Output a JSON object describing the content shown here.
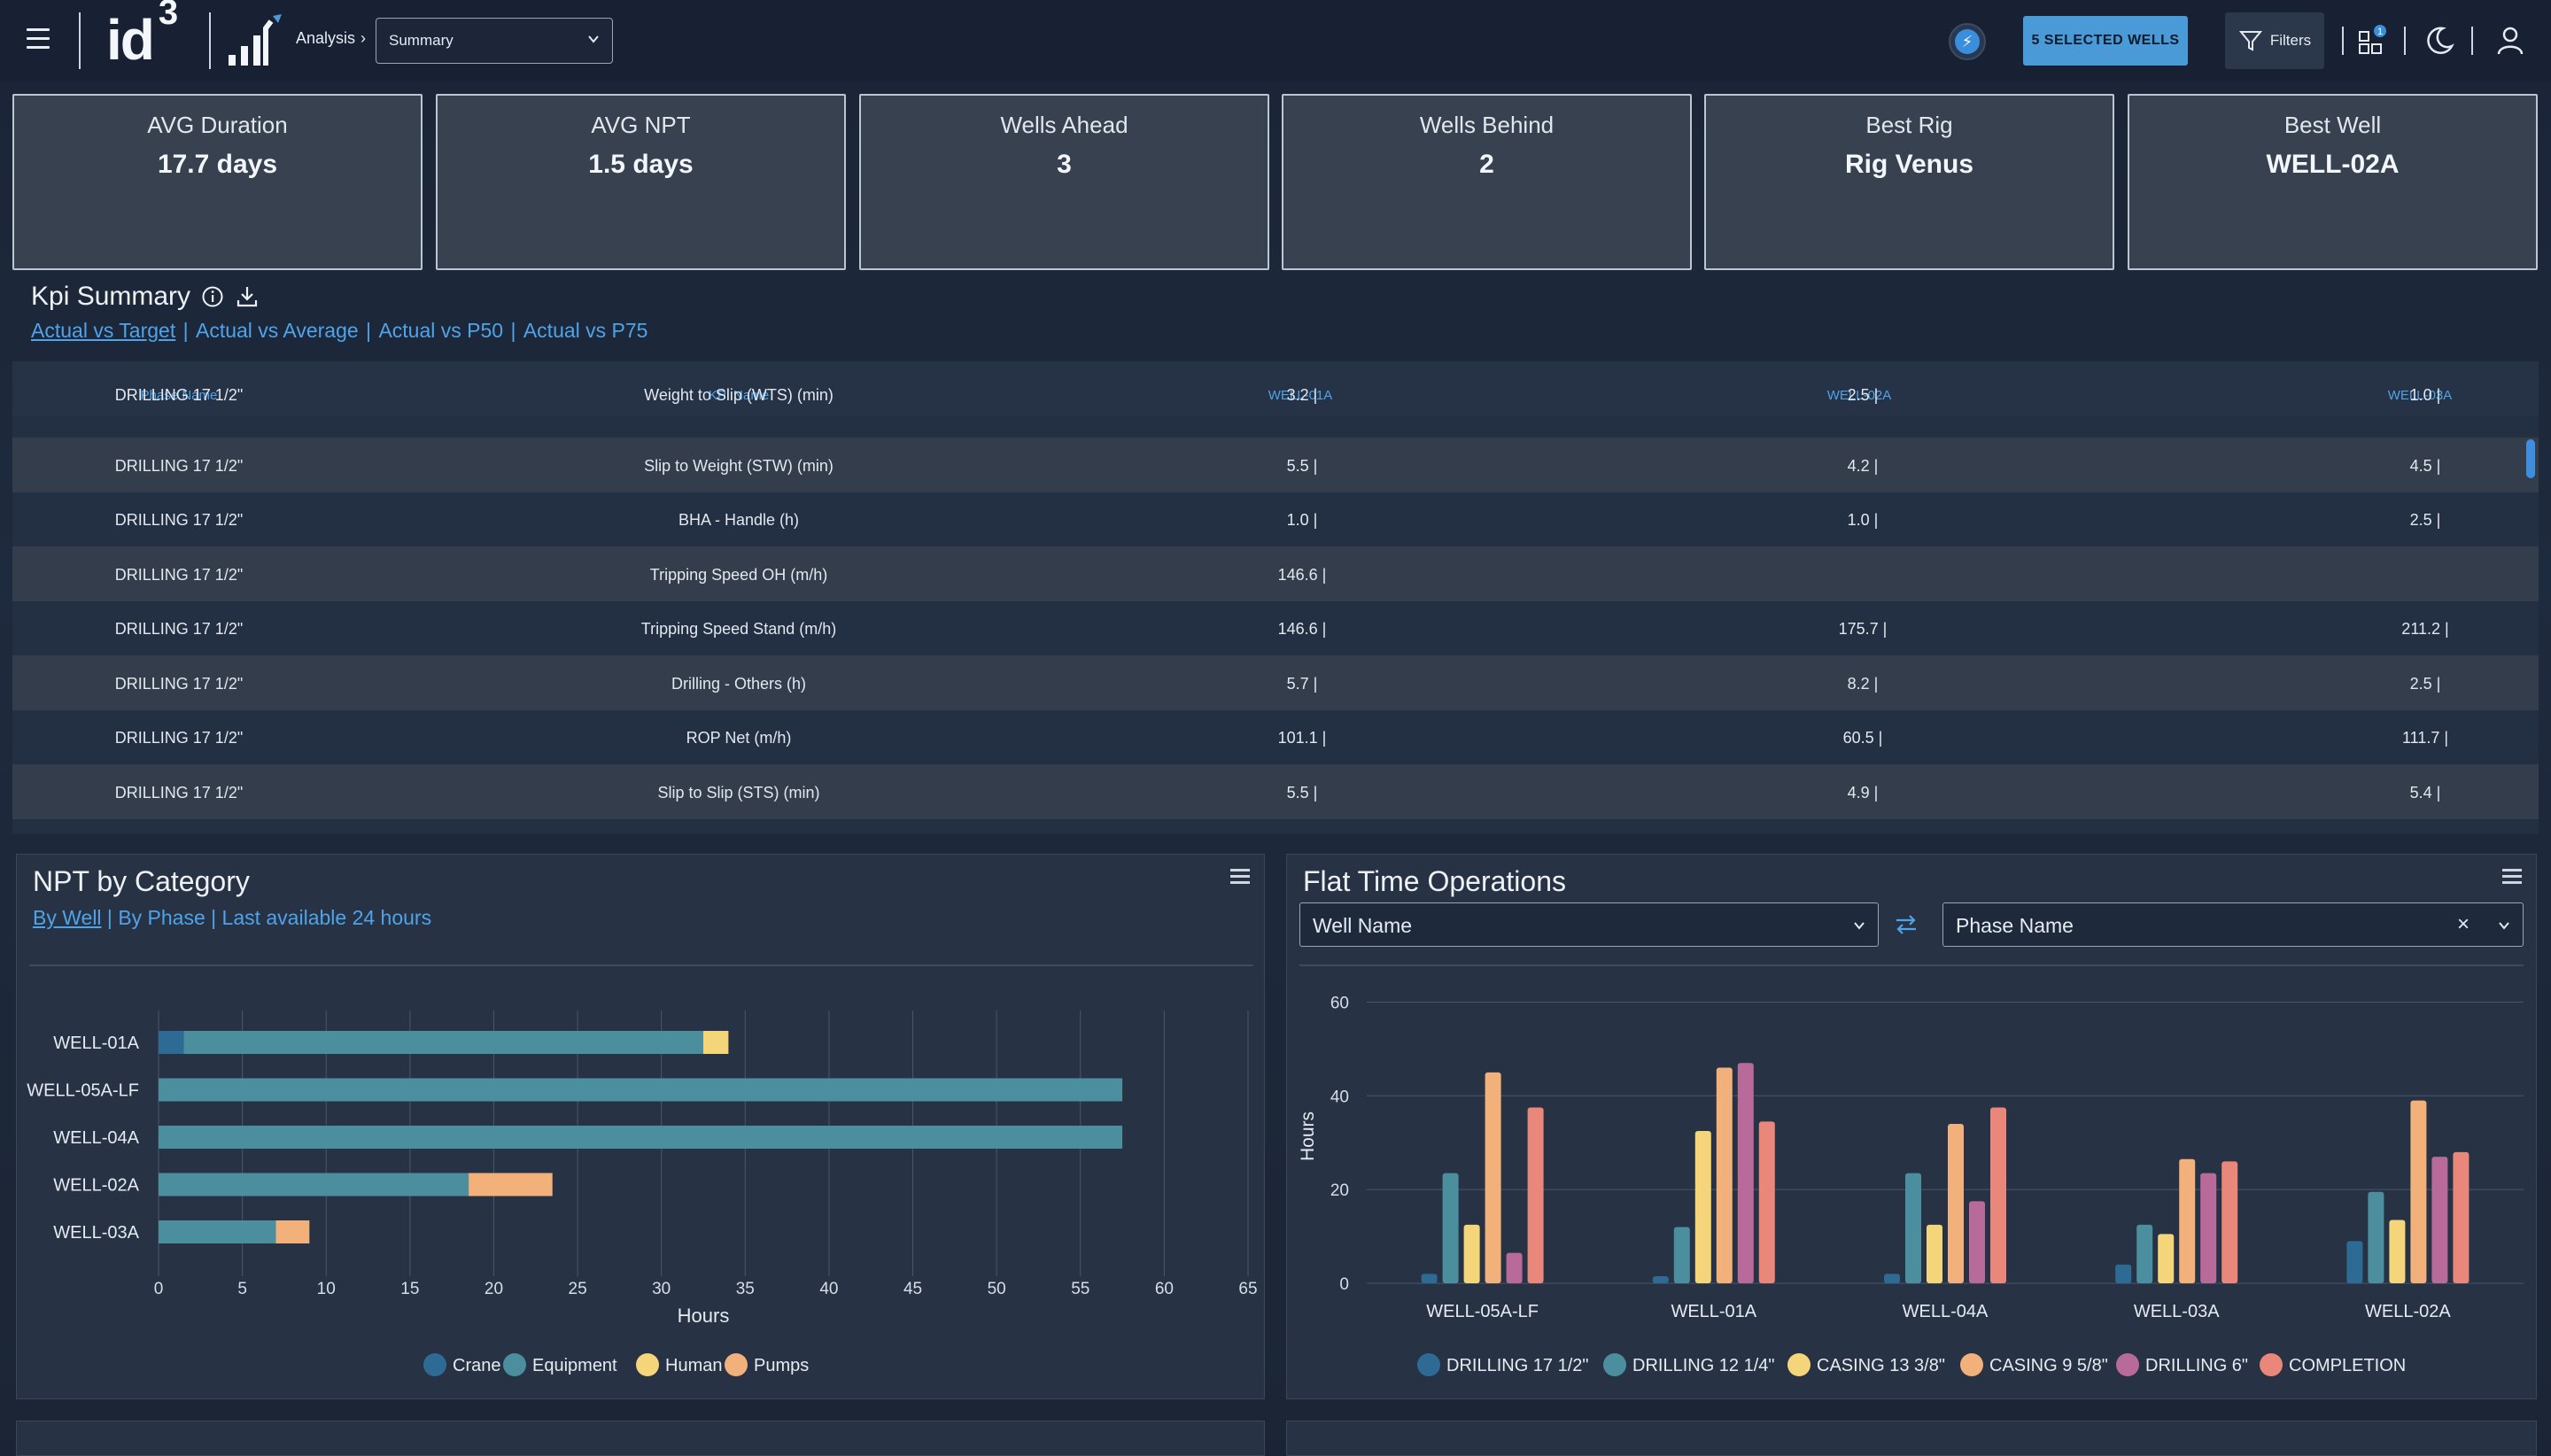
{
  "header": {
    "logo_text": "id",
    "logo_sup": "3",
    "breadcrumb": "Analysis",
    "view_select": "Summary",
    "selected_wells": "5 SELECTED WELLS",
    "filters": "Filters",
    "notification_count": "1"
  },
  "kpi_cards": [
    {
      "label": "AVG Duration",
      "value": "17.7 days"
    },
    {
      "label": "AVG NPT",
      "value": "1.5 days"
    },
    {
      "label": "Wells Ahead",
      "value": "3"
    },
    {
      "label": "Wells Behind",
      "value": "2"
    },
    {
      "label": "Best Rig",
      "value": "Rig Venus"
    },
    {
      "label": "Best Well",
      "value": "WELL-02A"
    }
  ],
  "kpi_summary": {
    "title": "Kpi Summary",
    "tabs": [
      "Actual vs Target",
      "Actual vs Average",
      "Actual vs P50",
      "Actual vs P75"
    ],
    "columns": [
      "Phase Name",
      "KPI Name",
      "WELL-01A",
      "WELL-02A",
      "WELL-03A"
    ],
    "rows": [
      [
        "DRILLING 17 1/2\"",
        "Weight to Slip (WTS) (min)",
        "3.2 |",
        "2.5 |",
        "1.0 |"
      ],
      [
        "DRILLING 17 1/2\"",
        "Slip to Weight (STW) (min)",
        "5.5 |",
        "4.2 |",
        "4.5 |"
      ],
      [
        "DRILLING 17 1/2\"",
        "BHA - Handle (h)",
        "1.0 |",
        "1.0 |",
        "2.5 |"
      ],
      [
        "DRILLING 17 1/2\"",
        "Tripping Speed OH (m/h)",
        "146.6 |",
        "",
        ""
      ],
      [
        "DRILLING 17 1/2\"",
        "Tripping Speed Stand (m/h)",
        "146.6 |",
        "175.7 |",
        "211.2 |"
      ],
      [
        "DRILLING 17 1/2\"",
        "Drilling - Others (h)",
        "5.7 |",
        "8.2 |",
        "2.5 |"
      ],
      [
        "DRILLING 17 1/2\"",
        "ROP Net (m/h)",
        "101.1 |",
        "60.5 |",
        "111.7 |"
      ],
      [
        "DRILLING 17 1/2\"",
        "Slip to Slip (STS) (min)",
        "5.5 |",
        "4.9 |",
        "5.4 |"
      ]
    ]
  },
  "npt_panel": {
    "title": "NPT by Category",
    "links": [
      "By Well",
      "By Phase",
      "Last available 24 hours"
    ]
  },
  "flat_panel": {
    "title": "Flat Time Operations",
    "dropdown_left": "Well Name",
    "dropdown_right": "Phase Name"
  },
  "chart_data": [
    {
      "type": "bar",
      "orientation": "horizontal",
      "stacked": true,
      "categories": [
        "WELL-01A",
        "WELL-05A-LF",
        "WELL-04A",
        "WELL-02A",
        "WELL-03A"
      ],
      "series": [
        {
          "name": "Crane",
          "color": "#2e6b94",
          "values": [
            1.5,
            0,
            0,
            0,
            0
          ]
        },
        {
          "name": "Equipment",
          "color": "#4b8f9f",
          "values": [
            31,
            57.5,
            57.5,
            18.5,
            7
          ]
        },
        {
          "name": "Human",
          "color": "#f5d57a",
          "values": [
            1.5,
            0,
            0,
            0,
            0
          ]
        },
        {
          "name": "Pumps",
          "color": "#f2b07a",
          "values": [
            0,
            0,
            0,
            5,
            2
          ]
        }
      ],
      "xlabel": "Hours",
      "xlim": [
        0,
        65
      ],
      "xticks": [
        0,
        5,
        10,
        15,
        20,
        25,
        30,
        35,
        40,
        45,
        50,
        55,
        60,
        65
      ],
      "legend": "bottom"
    },
    {
      "type": "bar",
      "categories": [
        "WELL-05A-LF",
        "WELL-01A",
        "WELL-04A",
        "WELL-03A",
        "WELL-02A"
      ],
      "series": [
        {
          "name": "DRILLING 17 1/2\"",
          "color": "#2e6b94",
          "values": [
            2,
            1.5,
            2,
            4,
            9
          ]
        },
        {
          "name": "DRILLING 12 1/4\"",
          "color": "#4b8f9f",
          "values": [
            23.5,
            12,
            23.5,
            12.5,
            19.5
          ]
        },
        {
          "name": "CASING 13 3/8\"",
          "color": "#f5d57a",
          "values": [
            12.5,
            32.5,
            12.5,
            10.5,
            13.5
          ]
        },
        {
          "name": "CASING 9 5/8\"",
          "color": "#f2b07a",
          "values": [
            45,
            46,
            34,
            26.5,
            39
          ]
        },
        {
          "name": "DRILLING 6\"",
          "color": "#b86b9a",
          "values": [
            6.5,
            47,
            17.5,
            23.5,
            27
          ]
        },
        {
          "name": "COMPLETION",
          "color": "#e8877a",
          "values": [
            37.5,
            34.5,
            37.5,
            26,
            28
          ]
        }
      ],
      "ylabel": "Hours",
      "ylim": [
        0,
        65
      ],
      "yticks": [
        0,
        20,
        40,
        60
      ],
      "legend": "bottom"
    }
  ]
}
